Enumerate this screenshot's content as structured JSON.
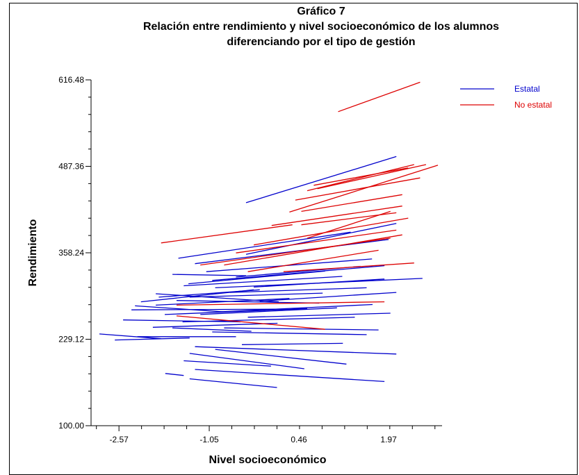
{
  "chart_data": {
    "type": "line",
    "title": [
      "Gráfico 7",
      "Relación entre rendimiento y nivel socioeconómico de los alumnos",
      "diferenciando por el  tipo de gestión"
    ],
    "xlabel": "Nivel socioeconómico",
    "ylabel": "Rendimiento",
    "x_ticks": [
      "-2.57",
      "-1.05",
      "0.46",
      "1.97"
    ],
    "x_tick_values": [
      -2.57,
      -1.05,
      0.46,
      1.97
    ],
    "y_ticks": [
      "100.00",
      "229.12",
      "358.24",
      "487.36",
      "616.48"
    ],
    "y_tick_values": [
      100.0,
      229.12,
      358.24,
      487.36,
      616.48
    ],
    "xlim": [
      -3.04,
      2.87
    ],
    "ylim": [
      100.0,
      616.48
    ],
    "grid": false,
    "legend_position": "top-right",
    "series": [
      {
        "name": "Estatal",
        "color": "#0000cc",
        "segments": [
          [
            -0.43,
            433,
            2.1,
            502
          ],
          [
            -1.67,
            246,
            -0.34,
            241
          ],
          [
            -1.79,
            178,
            -1.48,
            175
          ],
          [
            -1.38,
            170,
            0.09,
            157
          ],
          [
            -1.29,
            184,
            1.9,
            166
          ],
          [
            -1.48,
            197,
            -0.01,
            189
          ],
          [
            -1.38,
            208,
            0.55,
            185
          ],
          [
            -0.95,
            214,
            1.26,
            192
          ],
          [
            -1.29,
            218,
            2.1,
            207
          ],
          [
            -2.26,
            233,
            -0.6,
            233
          ],
          [
            -2.9,
            237,
            -1.86,
            230
          ],
          [
            -2.64,
            228,
            -1.38,
            231
          ],
          [
            -2.5,
            258,
            -0.52,
            255
          ],
          [
            -2.36,
            273,
            0.17,
            274
          ],
          [
            -1.38,
            292,
            0.86,
            298
          ],
          [
            -1.95,
            297,
            0.12,
            285
          ],
          [
            -1.67,
            326,
            -0.43,
            324
          ],
          [
            -1.48,
            309,
            1.19,
            323
          ],
          [
            -0.95,
            306,
            2.54,
            320
          ],
          [
            -1.1,
            330,
            1.69,
            349
          ],
          [
            -1.29,
            342,
            1.97,
            378
          ],
          [
            -1.57,
            350,
            1.33,
            389
          ],
          [
            -0.43,
            356,
            2.1,
            402
          ],
          [
            -1.0,
            317,
            1.9,
            339
          ],
          [
            -2.2,
            285,
            -0.3,
            303
          ],
          [
            -1.95,
            280,
            0.3,
            290
          ],
          [
            -1.8,
            266,
            0.6,
            275
          ],
          [
            -2.0,
            247,
            0.1,
            253
          ],
          [
            -1.5,
            255,
            1.4,
            262
          ],
          [
            -1.0,
            240,
            1.6,
            236
          ],
          [
            -0.8,
            246,
            1.8,
            243
          ],
          [
            -0.5,
            221,
            1.2,
            223
          ],
          [
            -2.3,
            279,
            -0.8,
            270
          ],
          [
            -0.2,
            286,
            2.1,
            299
          ],
          [
            -0.7,
            299,
            1.6,
            306
          ],
          [
            -1.2,
            266,
            1.1,
            276
          ],
          [
            -0.4,
            262,
            2.0,
            268
          ],
          [
            -1.6,
            287,
            0.8,
            283
          ],
          [
            -0.9,
            270,
            1.7,
            281
          ],
          [
            -1.4,
            312,
            0.9,
            331
          ],
          [
            -0.6,
            322,
            1.5,
            338
          ],
          [
            -1.9,
            292,
            -0.2,
            303
          ],
          [
            -0.3,
            307,
            1.9,
            319
          ]
        ]
      },
      {
        "name": "No estatal",
        "color": "#dd0000",
        "segments": [
          [
            1.12,
            569,
            2.5,
            613
          ],
          [
            -1.86,
            373,
            0.35,
            400
          ],
          [
            0.3,
            419,
            2.8,
            489
          ],
          [
            0.6,
            451,
            2.4,
            490
          ],
          [
            0.77,
            454,
            2.6,
            490
          ],
          [
            0.71,
            459,
            2.3,
            485
          ],
          [
            0.4,
            437,
            2.5,
            470
          ],
          [
            0.5,
            420,
            2.2,
            445
          ],
          [
            0.0,
            399,
            2.2,
            428
          ],
          [
            0.5,
            400,
            2.1,
            418
          ],
          [
            -1.2,
            340,
            2.0,
            380
          ],
          [
            -0.8,
            340,
            2.2,
            385
          ],
          [
            -0.6,
            358,
            2.1,
            392
          ],
          [
            -0.3,
            370,
            2.3,
            410
          ],
          [
            0.2,
            330,
            2.4,
            343
          ],
          [
            -1.6,
            280,
            1.9,
            285
          ],
          [
            -1.6,
            264,
            0.9,
            244
          ],
          [
            -0.4,
            330,
            1.8,
            362
          ],
          [
            0.6,
            380,
            2.0,
            420
          ]
        ]
      }
    ]
  }
}
